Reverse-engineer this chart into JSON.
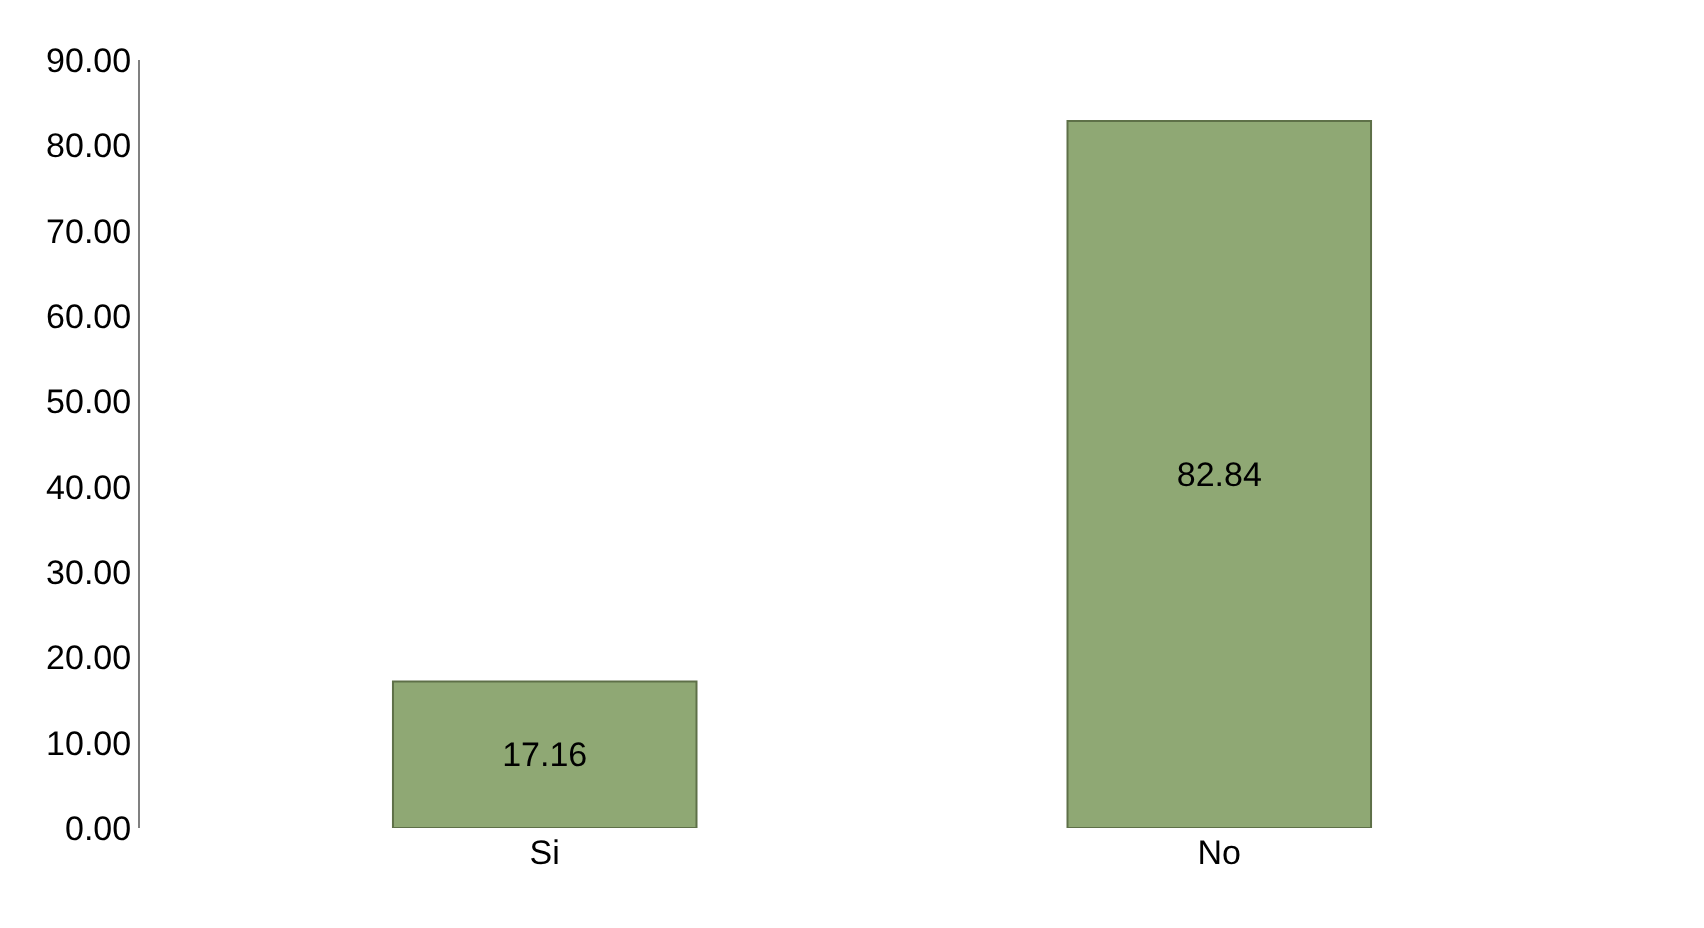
{
  "chart_data": {
    "type": "bar",
    "categories": [
      "Si",
      "No"
    ],
    "values": [
      17.16,
      82.84
    ],
    "color": "#8fa874",
    "data_labels": true,
    "ylim": [
      0,
      90
    ],
    "yticks": [
      {
        "value": 0,
        "label": "0.00"
      },
      {
        "value": 10,
        "label": "10.00"
      },
      {
        "value": 20,
        "label": "20.00"
      },
      {
        "value": 30,
        "label": "30.00"
      },
      {
        "value": 40,
        "label": "40.00"
      },
      {
        "value": 50,
        "label": "50.00"
      },
      {
        "value": 60,
        "label": "60.00"
      },
      {
        "value": 70,
        "label": "70.00"
      },
      {
        "value": 80,
        "label": "80.00"
      },
      {
        "value": 90,
        "label": "90.00"
      }
    ],
    "legend": false
  }
}
